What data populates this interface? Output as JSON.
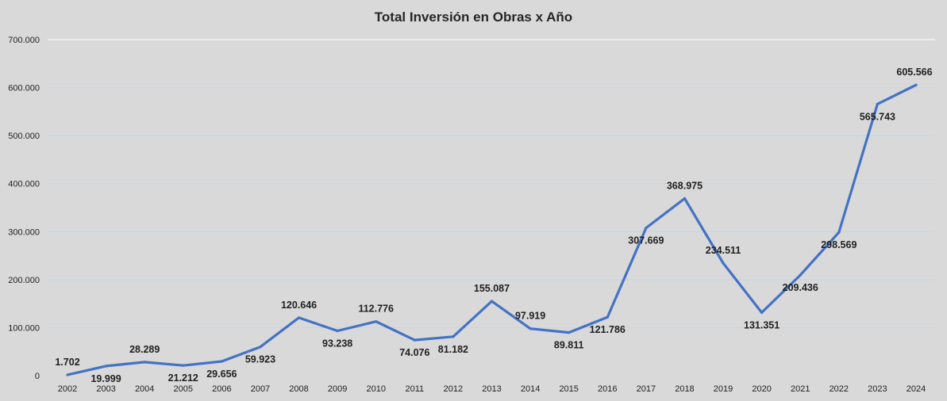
{
  "chart_data": {
    "type": "line",
    "title": "Total Inversión en Obras x Año",
    "xlabel": "",
    "ylabel": "",
    "ylim": [
      0,
      700000
    ],
    "y_ticks": [
      0,
      100000,
      200000,
      300000,
      400000,
      500000,
      600000,
      700000
    ],
    "y_tick_labels": [
      "0",
      "100.000",
      "200.000",
      "300.000",
      "400.000",
      "500.000",
      "600.000",
      "700.000"
    ],
    "grid": true,
    "legend": "none",
    "categories": [
      "2002",
      "2003",
      "2004",
      "2005",
      "2006",
      "2007",
      "2008",
      "2009",
      "2010",
      "2011",
      "2012",
      "2013",
      "2014",
      "2015",
      "2016",
      "2017",
      "2018",
      "2019",
      "2020",
      "2021",
      "2022",
      "2023",
      "2024"
    ],
    "series": [
      {
        "values": [
          1702,
          19999,
          28289,
          21212,
          29656,
          59923,
          120646,
          93238,
          112776,
          74076,
          81182,
          155087,
          97919,
          89811,
          121786,
          307669,
          368975,
          234511,
          131351,
          209436,
          298569,
          565743,
          605566
        ],
        "labels": [
          "1.702",
          "19.999",
          "28.289",
          "21.212",
          "29.656",
          "59.923",
          "120.646",
          "93.238",
          "112.776",
          "74.076",
          "81.182",
          "155.087",
          "97.919",
          "89.811",
          "121.786",
          "307.669",
          "368.975",
          "234.511",
          "131.351",
          "209.436",
          "298.569",
          "565.743",
          "605.566"
        ],
        "color": "#4472c4"
      }
    ],
    "grid_color": "#bdd7ee",
    "top_grid_color": "#ffffff"
  }
}
